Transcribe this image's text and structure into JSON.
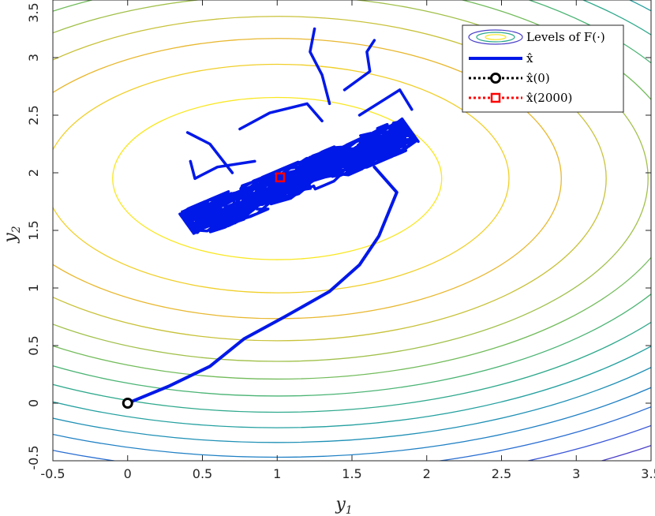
{
  "chart_data": {
    "type": "line",
    "xlabel": "y1",
    "ylabel": "y2",
    "xlim": [
      -0.5,
      3.5
    ],
    "ylim": [
      -0.5,
      3.5
    ],
    "xticks": [
      -0.5,
      0,
      0.5,
      1,
      1.5,
      2,
      2.5,
      3,
      3.5
    ],
    "yticks": [
      -0.5,
      0,
      0.5,
      1,
      1.5,
      2,
      2.5,
      3,
      3.5
    ],
    "xtick_labels": [
      "-0.5",
      "0",
      "0.5",
      "1",
      "1.5",
      "2",
      "2.5",
      "3",
      "3.5"
    ],
    "ytick_labels": [
      "-0.5",
      "0",
      "0.5",
      "1",
      "1.5",
      "2",
      "2.5",
      "3",
      "3.5"
    ],
    "grid": false,
    "legend_position": "top-right",
    "contours": {
      "name": "Levels of F(·)",
      "center": [
        1.0,
        1.95
      ],
      "semi_axes_x": [
        1.1,
        1.55,
        1.9,
        2.2,
        2.48,
        2.72,
        2.95,
        3.17,
        3.38,
        3.58,
        3.78,
        3.98,
        4.18,
        4.4
      ],
      "axis_ratio": 0.64,
      "colors": [
        "#f9e721",
        "#f0cf29",
        "#e8b830",
        "#c8c23a",
        "#a1c04a",
        "#73bc5c",
        "#4bb474",
        "#2fa98c",
        "#25a0a0",
        "#1f90b5",
        "#1f80c4",
        "#2a6ed2",
        "#3b58d8",
        "#4b40c8"
      ]
    },
    "trajectory": {
      "name": "x̂",
      "color": "#0018e8",
      "path": [
        [
          0,
          0
        ],
        [
          0.28,
          0.15
        ],
        [
          0.55,
          0.32
        ],
        [
          0.78,
          0.56
        ],
        [
          1.05,
          0.75
        ],
        [
          1.35,
          0.97
        ],
        [
          1.55,
          1.2
        ],
        [
          1.68,
          1.45
        ],
        [
          1.8,
          1.83
        ],
        [
          1.65,
          2.05
        ]
      ]
    },
    "cloud": {
      "center": [
        1.15,
        1.95
      ],
      "slope": 0.55,
      "half_length": 0.85,
      "half_width": 0.14
    },
    "excursions": [
      [
        [
          1.3,
          2.45
        ],
        [
          1.2,
          2.6
        ],
        [
          0.95,
          2.52
        ],
        [
          0.75,
          2.38
        ]
      ],
      [
        [
          1.35,
          2.6
        ],
        [
          1.3,
          2.85
        ],
        [
          1.22,
          3.05
        ],
        [
          1.25,
          3.25
        ]
      ],
      [
        [
          1.45,
          2.72
        ],
        [
          1.62,
          2.88
        ],
        [
          1.6,
          3.05
        ],
        [
          1.65,
          3.15
        ]
      ],
      [
        [
          0.85,
          2.1
        ],
        [
          0.6,
          2.05
        ],
        [
          0.45,
          1.95
        ],
        [
          0.42,
          2.1
        ]
      ],
      [
        [
          1.55,
          2.5
        ],
        [
          1.82,
          2.72
        ],
        [
          1.9,
          2.55
        ]
      ],
      [
        [
          0.7,
          2.0
        ],
        [
          0.55,
          2.25
        ],
        [
          0.4,
          2.35
        ]
      ]
    ],
    "start": {
      "name": "x̂(0)",
      "x": 0,
      "y": 0,
      "color": "#000000"
    },
    "end": {
      "name": "x̂(2000)",
      "x": 1.02,
      "y": 1.96,
      "color": "#ff0000"
    }
  },
  "legend": {
    "levels_label": "Levels of F(·)",
    "xhat_label": "x̂",
    "x0_label": "x̂(0)",
    "x2000_label": "x̂(2000)"
  }
}
